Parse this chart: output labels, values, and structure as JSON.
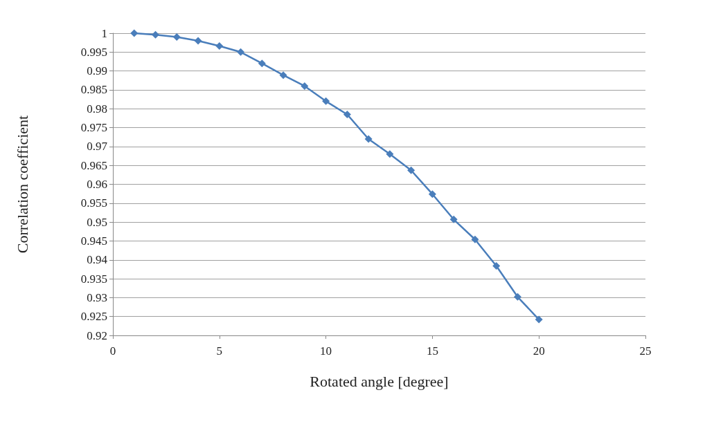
{
  "chart_data": {
    "type": "line",
    "xlabel": "Rotated angle [degree]",
    "ylabel": "Correlation coefficient",
    "x": [
      1,
      2,
      3,
      4,
      5,
      6,
      7,
      8,
      9,
      10,
      11,
      12,
      13,
      14,
      15,
      16,
      17,
      18,
      19,
      20
    ],
    "series": [
      {
        "color": "#4a7ebb",
        "values": [
          1.0,
          0.9996,
          0.999,
          0.998,
          0.9966,
          0.995,
          0.992,
          0.9889,
          0.986,
          0.982,
          0.9785,
          0.972,
          0.968,
          0.9637,
          0.9574,
          0.9507,
          0.9454,
          0.9384,
          0.9302,
          0.9242
        ]
      }
    ],
    "xlim": [
      0,
      25
    ],
    "xticks": [
      0,
      5,
      10,
      15,
      20,
      25
    ],
    "ylim": [
      0.92,
      1
    ],
    "yticks": [
      0.92,
      0.925,
      0.93,
      0.935,
      0.94,
      0.945,
      0.95,
      0.955,
      0.96,
      0.965,
      0.97,
      0.975,
      0.98,
      0.985,
      0.99,
      0.995,
      1
    ],
    "grid": "y",
    "marker": "diamond",
    "line_style": "solid"
  }
}
